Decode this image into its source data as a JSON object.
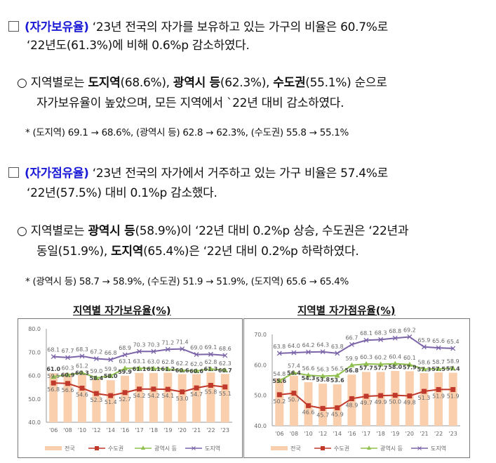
{
  "section1": {
    "marker": "□",
    "line1": [
      {
        "t": "(자가보유율)",
        "s": "blue"
      },
      {
        "t": " ‘23년 전국의 자가를 보유하고 있는 가구의 비율은 60.7%로",
        "s": ""
      }
    ],
    "line2": [
      {
        "t": "‘22년도(61.3%)에 비해 0.6%p 감소하였다.",
        "s": ""
      }
    ],
    "bullet_marker": "○",
    "bullet1": [
      {
        "t": "지역별로는 ",
        "s": ""
      },
      {
        "t": "도지역",
        "s": "b"
      },
      {
        "t": "(68.6%), ",
        "s": ""
      },
      {
        "t": "광역시 등",
        "s": "b"
      },
      {
        "t": "(62.3%), ",
        "s": ""
      },
      {
        "t": "수도권",
        "s": "b"
      },
      {
        "t": "(55.1%) 순으로",
        "s": ""
      }
    ],
    "bullet2": [
      {
        "t": "자가보유율이 높았으며, 모든 지역에서 `22년 대비 감소하였다.",
        "s": ""
      }
    ],
    "note": "* (도지역) 69.1 → 68.6%, (광역시 등) 62.8 → 62.3%, (수도권) 55.8 → 55.1%"
  },
  "section2": {
    "marker": "□",
    "line1": [
      {
        "t": "(자가점유율)",
        "s": "blue"
      },
      {
        "t": " ‘23년 전국의 자가에서 거주하고 있는 가구 비율은 57.4%로",
        "s": ""
      }
    ],
    "line2": [
      {
        "t": "‘22년(57.5%) 대비 0.1%p 감소했다.",
        "s": ""
      }
    ],
    "bullet_marker": "○",
    "bullet1": [
      {
        "t": "지역별로는 ",
        "s": ""
      },
      {
        "t": "광역시 등",
        "s": "b"
      },
      {
        "t": "(58.9%)이 ‘22년 대비 0.2%p 상승, 수도권은 ‘22년과",
        "s": ""
      }
    ],
    "bullet2": [
      {
        "t": "동일(51.9%), ",
        "s": ""
      },
      {
        "t": "도지역",
        "s": "b"
      },
      {
        "t": "(65.4%)은 ‘22년 대비 0.2%p 하락하였다.",
        "s": ""
      }
    ],
    "note": "* (광역시 등) 58.7 → 58.9%, (수도권) 51.9 → 51.9%, (도지역) 65.6 → 65.4%"
  },
  "colors": {
    "national": "#f9cfae",
    "capital": "#c0392b",
    "metro": "#8fbf4f",
    "province": "#7b64a8"
  },
  "chart_data": [
    {
      "type": "bar+line",
      "title": "지역별 자가보유율(%)",
      "categories": [
        "'06",
        "'08",
        "'10",
        "'12",
        "'14",
        "'16",
        "'17",
        "'18",
        "'19",
        "'20",
        "'21",
        "'22",
        "'23"
      ],
      "ylim": [
        40,
        80
      ],
      "yticks": [
        "40.0",
        "50.0",
        "60.0",
        "70.0",
        "80.0"
      ],
      "legend_position": "bottom",
      "series": [
        {
          "name": "전국",
          "kind": "bar",
          "values": [
            61.0,
            60.9,
            60.3,
            58.4,
            58.0,
            59.9,
            61.1,
            61.1,
            61.2,
            60.6,
            60.6,
            61.3,
            60.7
          ]
        },
        {
          "name": "수도권",
          "kind": "line",
          "values": [
            56.8,
            56.6,
            54.6,
            52.3,
            51.4,
            52.7,
            54.2,
            54.2,
            54.1,
            53.0,
            54.7,
            55.8,
            55.1
          ]
        },
        {
          "name": "광역시 등",
          "kind": "line",
          "values": [
            59.5,
            60.3,
            61.2,
            59.0,
            59.9,
            63.1,
            63.1,
            63.0,
            62.8,
            62.2,
            62.0,
            62.8,
            62.3
          ]
        },
        {
          "name": "도지역",
          "kind": "line",
          "values": [
            68.1,
            67.7,
            68.3,
            67.2,
            66.8,
            68.9,
            70.3,
            70.3,
            71.2,
            71.4,
            69.0,
            69.1,
            68.6
          ]
        }
      ]
    },
    {
      "type": "bar+line",
      "title": "지역별 자가점유율(%)",
      "categories": [
        "'06",
        "'08",
        "'10",
        "'12",
        "'14",
        "'16",
        "'17",
        "'18",
        "'19",
        "'20",
        "'21",
        "'22",
        "'23"
      ],
      "ylim": [
        40,
        70
      ],
      "yticks": [
        "40.0",
        "50.0",
        "60.0",
        "70.0"
      ],
      "legend_position": "bottom",
      "series": [
        {
          "name": "전국",
          "kind": "bar",
          "values": [
            55.6,
            56.4,
            54.3,
            53.8,
            53.6,
            56.8,
            57.7,
            57.7,
            58.0,
            57.9,
            57.3,
            57.5,
            57.4
          ]
        },
        {
          "name": "수도권",
          "kind": "line",
          "values": [
            50.2,
            50.7,
            46.6,
            45.7,
            45.9,
            48.9,
            49.7,
            49.9,
            50.0,
            49.8,
            51.3,
            51.9,
            51.9
          ]
        },
        {
          "name": "광역시 등",
          "kind": "line",
          "values": [
            54.8,
            57.4,
            56.6,
            56.3,
            56.5,
            59.9,
            60.3,
            60.2,
            60.4,
            60.1,
            58.6,
            58.7,
            58.9
          ]
        },
        {
          "name": "도지역",
          "kind": "line",
          "values": [
            63.8,
            64.0,
            64.2,
            64.3,
            63.8,
            66.7,
            68.1,
            68.3,
            68.8,
            69.2,
            65.9,
            65.6,
            65.4
          ]
        }
      ]
    }
  ]
}
